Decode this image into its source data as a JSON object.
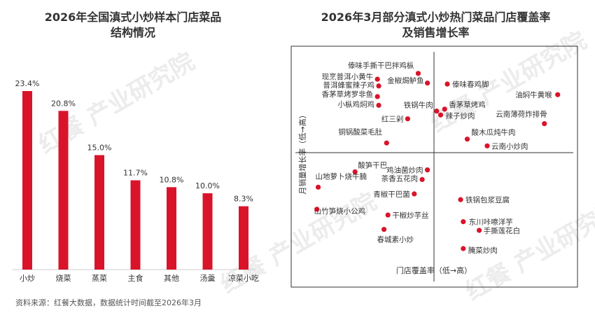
{
  "source": "资料来源：红餐大数据，数据统计时间截至2026年3月",
  "watermark": "红餐 产业研究院",
  "chart_data": [
    {
      "type": "bar",
      "title_lines": [
        "2026年全国滇式小炒样本门店菜品",
        "结构情况"
      ],
      "categories": [
        "小炒",
        "烧菜",
        "蒸菜",
        "主食",
        "其他",
        "汤羹",
        "凉菜小吃"
      ],
      "values": [
        23.4,
        20.8,
        15.0,
        11.7,
        10.8,
        10.0,
        8.3
      ],
      "value_labels": [
        "23.4%",
        "20.8%",
        "15.0%",
        "11.7%",
        "10.8%",
        "10.0%",
        "8.3%"
      ],
      "ylim": [
        0,
        25
      ],
      "color": "#d9142a"
    },
    {
      "type": "scatter",
      "title_lines": [
        "2026年3月部分滇式小炒热门菜品门店覆盖率",
        "及销售增长率"
      ],
      "xlabel": "门店覆盖率（低→高）",
      "ylabel": "月销量增长率（低→高）",
      "xlim": [
        -1,
        1
      ],
      "ylim": [
        -1,
        1
      ],
      "color": "#d9142a",
      "points": [
        {
          "label": "傣味手撕干巴拌鸡枞",
          "x": -0.12,
          "y": 0.82
        },
        {
          "label": "现烹普洱小黄牛",
          "x": -0.43,
          "y": 0.76
        },
        {
          "label": "普洱蜂蜜辣子鸡",
          "x": -0.42,
          "y": 0.69
        },
        {
          "label": "金椒焗鲈鱼",
          "x": -0.05,
          "y": 0.72
        },
        {
          "label": "傣味春鸡脚",
          "x": 0.1,
          "y": 0.71
        },
        {
          "label": "油焖牛黄喉",
          "x": 0.93,
          "y": 0.6
        },
        {
          "label": "香茅草烤罗非鱼",
          "x": -0.43,
          "y": 0.58
        },
        {
          "label": "小枞鸡焖鸡",
          "x": -0.42,
          "y": 0.49
        },
        {
          "label": "铁锅牛肉",
          "x": 0.02,
          "y": 0.43
        },
        {
          "label": "香茅草烤鸡",
          "x": 0.08,
          "y": 0.45
        },
        {
          "label": "红三剁",
          "x": -0.2,
          "y": 0.35
        },
        {
          "label": "辣子炒肉",
          "x": 0.05,
          "y": 0.39
        },
        {
          "label": "云南薄荷炸排骨",
          "x": 0.83,
          "y": 0.3
        },
        {
          "label": "铜锅酸菜毛肚",
          "x": -0.36,
          "y": 0.1
        },
        {
          "label": "酸木瓜炖牛肉",
          "x": 0.25,
          "y": 0.14
        },
        {
          "label": "云南小炒肉",
          "x": 0.4,
          "y": 0.07
        },
        {
          "label": "鸡油菌炒肉",
          "x": -0.05,
          "y": -0.18
        },
        {
          "label": "酸笋干巴",
          "x": -0.6,
          "y": -0.2
        },
        {
          "label": "茶香五花肉",
          "x": -0.09,
          "y": -0.28
        },
        {
          "label": "山地萝卜烧牛腩",
          "x": -0.88,
          "y": -0.36
        },
        {
          "label": "青椒干巴菌",
          "x": -0.15,
          "y": -0.43
        },
        {
          "label": "铁锅包浆豆腐",
          "x": 0.2,
          "y": -0.49
        },
        {
          "label": "山竹笋烧小公鸡",
          "x": -0.89,
          "y": -0.59
        },
        {
          "label": "干椒炒芋丝",
          "x": -0.35,
          "y": -0.65
        },
        {
          "label": "东川咔嚓洋芋",
          "x": 0.22,
          "y": -0.72
        },
        {
          "label": "手撕莲花白",
          "x": 0.34,
          "y": -0.81
        },
        {
          "label": "春城素小炒",
          "x": -0.38,
          "y": -0.8
        },
        {
          "label": "腌菜炒肉",
          "x": 0.22,
          "y": -1.0
        }
      ]
    }
  ]
}
